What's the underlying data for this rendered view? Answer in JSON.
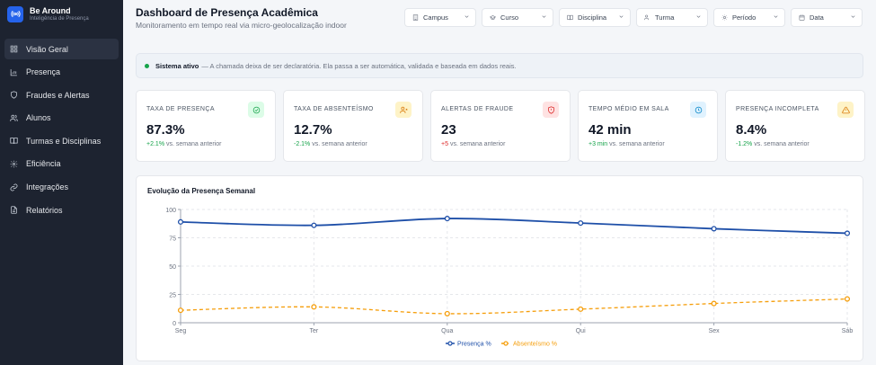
{
  "brand": {
    "name": "Be Around",
    "tagline": "Inteligência de Presença"
  },
  "sidebar": {
    "items": [
      {
        "label": "Visão Geral",
        "icon": "grid-icon",
        "active": true
      },
      {
        "label": "Presença",
        "icon": "bar-chart-icon",
        "active": false
      },
      {
        "label": "Fraudes e Alertas",
        "icon": "shield-icon",
        "active": false
      },
      {
        "label": "Alunos",
        "icon": "users-icon",
        "active": false
      },
      {
        "label": "Turmas e Disciplinas",
        "icon": "book-icon",
        "active": false
      },
      {
        "label": "Eficiência",
        "icon": "gear-icon",
        "active": false
      },
      {
        "label": "Integrações",
        "icon": "link-icon",
        "active": false
      },
      {
        "label": "Relatórios",
        "icon": "file-icon",
        "active": false
      }
    ]
  },
  "header": {
    "title": "Dashboard de Presença Acadêmica",
    "subtitle": "Monitoramento em tempo real via micro-geolocalização indoor"
  },
  "filters": [
    {
      "label": "Campus",
      "icon": "building-icon"
    },
    {
      "label": "Curso",
      "icon": "graduation-cap-icon"
    },
    {
      "label": "Disciplina",
      "icon": "book-icon"
    },
    {
      "label": "Turma",
      "icon": "users-icon"
    },
    {
      "label": "Período",
      "icon": "sun-icon"
    },
    {
      "label": "Data",
      "icon": "calendar-icon"
    }
  ],
  "banner": {
    "status": "Sistema ativo",
    "message": "— A chamada deixa de ser declaratória. Ela passa a ser automática, validada e baseada em dados reais."
  },
  "cards": [
    {
      "title": "Taxa de Presença",
      "value": "87.3%",
      "delta": "+2.1%",
      "delta_tone": "pos",
      "suffix": "vs. semana anterior",
      "icon": "check-circle-icon",
      "icon_bg": "#dcfce7",
      "icon_color": "#16a34a"
    },
    {
      "title": "Taxa de Absenteísmo",
      "value": "12.7%",
      "delta": "-2.1%",
      "delta_tone": "pos",
      "suffix": "vs. semana anterior",
      "icon": "user-x-icon",
      "icon_bg": "#fef3c7",
      "icon_color": "#d97706"
    },
    {
      "title": "Alertas de Fraude",
      "value": "23",
      "delta": "+5",
      "delta_tone": "neg",
      "suffix": "vs. semana anterior",
      "icon": "shield-alert-icon",
      "icon_bg": "#fee2e2",
      "icon_color": "#dc2626"
    },
    {
      "title": "Tempo Médio em Sala",
      "value": "42 min",
      "delta": "+3 min",
      "delta_tone": "pos",
      "suffix": "vs. semana anterior",
      "icon": "clock-icon",
      "icon_bg": "#e0f2fe",
      "icon_color": "#0284c7"
    },
    {
      "title": "Presença Incompleta",
      "value": "8.4%",
      "delta": "-1.2%",
      "delta_tone": "pos",
      "suffix": "vs. semana anterior",
      "icon": "alert-triangle-icon",
      "icon_bg": "#fef3c7",
      "icon_color": "#d97706"
    }
  ],
  "chart_data": {
    "type": "line",
    "title": "Evolução da Presença Semanal",
    "categories": [
      "Seg",
      "Ter",
      "Qua",
      "Qui",
      "Sex",
      "Sáb"
    ],
    "ylim": [
      0,
      100
    ],
    "yticks": [
      0,
      25,
      50,
      75,
      100
    ],
    "grid": true,
    "legend": "bottom",
    "series": [
      {
        "name": "Presença %",
        "values": [
          89,
          86,
          92,
          88,
          83,
          79
        ],
        "color": "#1e4fa8",
        "dashed": false
      },
      {
        "name": "Absenteísmo %",
        "values": [
          11,
          14,
          8,
          12,
          17,
          21
        ],
        "color": "#f59e0b",
        "dashed": true
      }
    ]
  }
}
